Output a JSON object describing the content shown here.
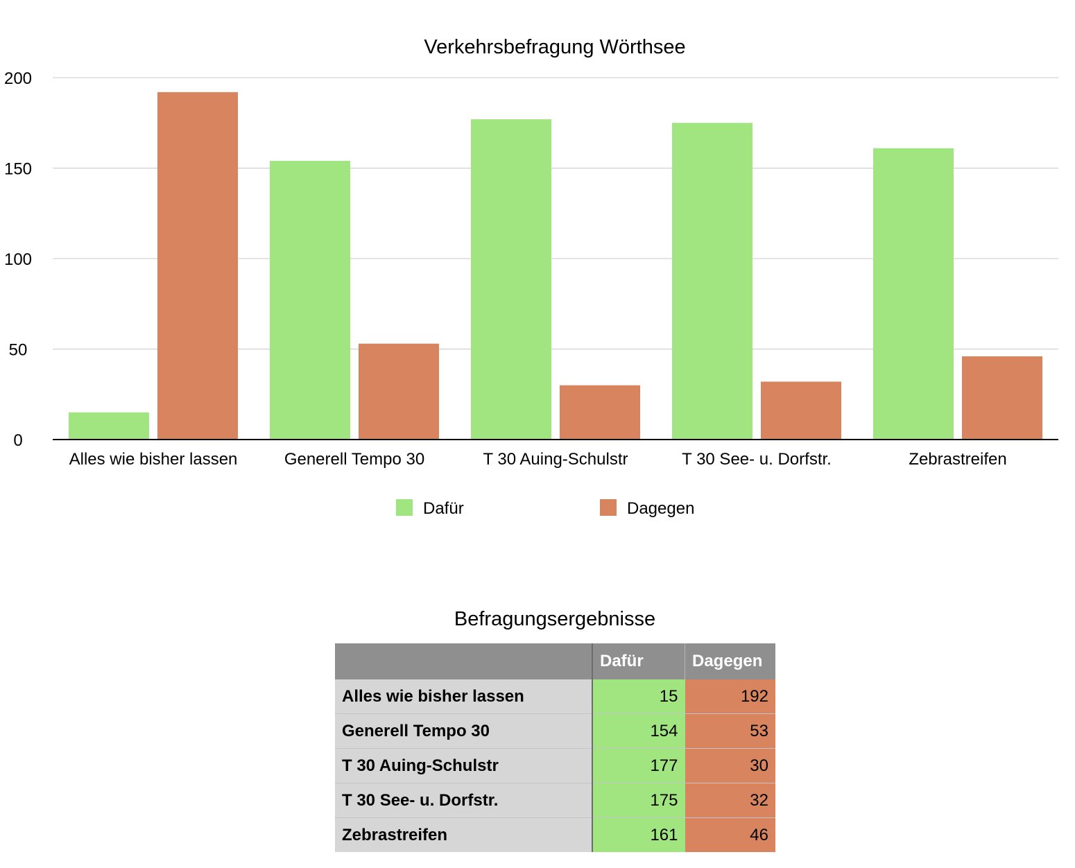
{
  "chart_data": {
    "type": "bar",
    "title": "Verkehrsbefragung Wörthsee",
    "categories": [
      "Alles wie bisher lassen",
      "Generell Tempo 30",
      "T 30 Auing-Schulstr",
      "T 30 See- u. Dorfstr.",
      "Zebrastreifen"
    ],
    "series": [
      {
        "name": "Dafür",
        "color": "#a1e581",
        "values": [
          15,
          154,
          177,
          175,
          161
        ]
      },
      {
        "name": "Dagegen",
        "color": "#d8845e",
        "values": [
          192,
          53,
          30,
          32,
          46
        ]
      }
    ],
    "ylim": [
      0,
      200
    ],
    "yticks": [
      0,
      50,
      100,
      150,
      200
    ],
    "xlabel": "",
    "ylabel": "",
    "grid": true,
    "legend_position": "bottom"
  },
  "table": {
    "title": "Befragungsergebnisse",
    "headers": [
      "",
      "Dafür",
      "Dagegen"
    ],
    "rows": [
      {
        "label": "Alles wie bisher lassen",
        "dafuer": "15",
        "dagegen": "192"
      },
      {
        "label": "Generell Tempo 30",
        "dafuer": "154",
        "dagegen": "53"
      },
      {
        "label": "T 30 Auing-Schulstr",
        "dafuer": "177",
        "dagegen": "30"
      },
      {
        "label": "T 30 See- u. Dorfstr.",
        "dafuer": "175",
        "dagegen": "32"
      },
      {
        "label": "Zebrastreifen",
        "dafuer": "161",
        "dagegen": "46"
      }
    ],
    "colors": {
      "header": "#8f8f8f",
      "label_cell": "#d6d6d6",
      "dafuer_cell": "#a1e581",
      "dagegen_cell": "#d8845e"
    }
  }
}
